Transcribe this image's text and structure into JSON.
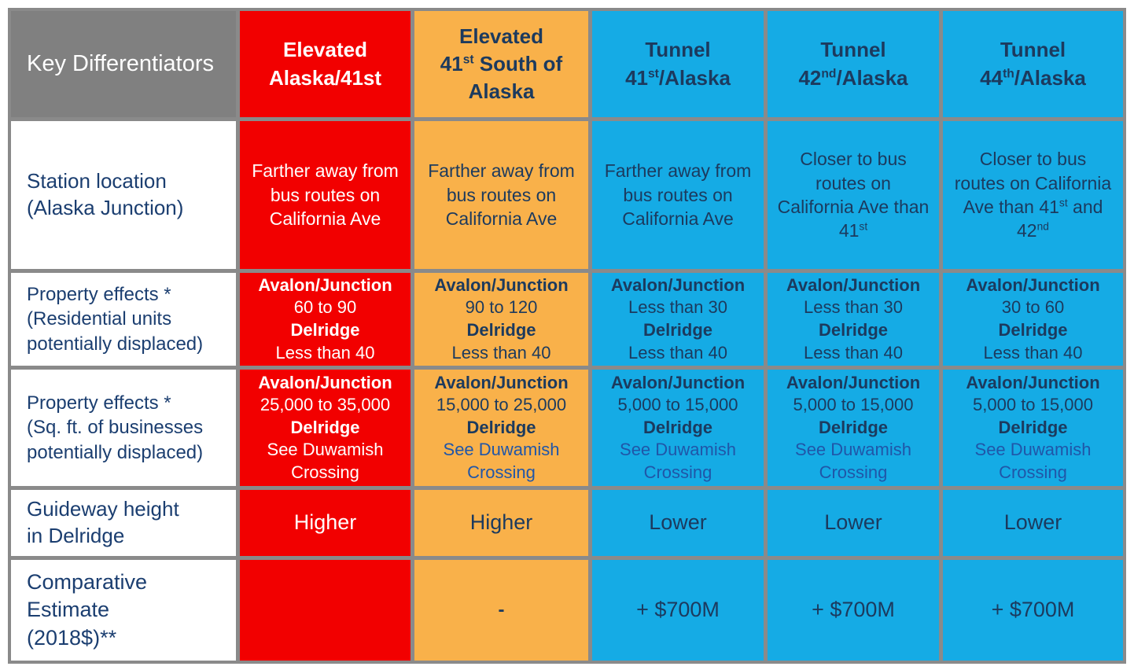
{
  "colors": {
    "header_gray": "#808080",
    "elevated_red": "#f20000",
    "elevated_orange": "#f9b14a",
    "tunnel_blue": "#15abe5",
    "grid_gray": "#8a8a8a",
    "label_navy": "#1b3e70",
    "cell_navy": "#1c3a5e",
    "duwamish_link_blue": "#2056a8",
    "white": "#ffffff"
  },
  "header": {
    "key": "Key Differentiators",
    "elevated_alaska": "Elevated Alaska/41st",
    "elevated_41st": {
      "line1": "Elevated",
      "num": "41",
      "sup": "st",
      "rest": " South of Alaska"
    },
    "tunnel_41": {
      "line1": "Tunnel",
      "num": "41",
      "sup": "st",
      "rest": "/Alaska"
    },
    "tunnel_42": {
      "line1": "Tunnel",
      "num": "42",
      "sup": "nd",
      "rest": "/Alaska"
    },
    "tunnel_44": {
      "line1": "Tunnel",
      "num": "44",
      "sup": "th",
      "rest": "/Alaska"
    }
  },
  "rows": {
    "station": {
      "label": "Station location (Alaska Junction)",
      "elevated_alaska": "Farther away from bus routes on California Ave",
      "elevated_41st": "Farther away from bus routes on California Ave",
      "tunnel_41": "Farther away from bus routes on California Ave",
      "tunnel_42": {
        "pre": "Closer to bus routes on California Ave than 41",
        "sup1": "st"
      },
      "tunnel_44": {
        "pre": "Closer to bus routes on California Ave than 41",
        "sup1": "st",
        "mid": " and 42",
        "sup2": "nd"
      }
    },
    "residential": {
      "label": "Property effects *",
      "label_sub": "(Residential units potentially displaced)",
      "elevated_alaska": {
        "loc1": "Avalon/Junction",
        "val1": "60 to 90",
        "loc2": "Delridge",
        "val2": "Less than 40"
      },
      "elevated_41st": {
        "loc1": "Avalon/Junction",
        "val1": "90 to 120",
        "loc2": "Delridge",
        "val2": "Less than 40"
      },
      "tunnel_41": {
        "loc1": "Avalon/Junction",
        "val1": "Less than 30",
        "loc2": "Delridge",
        "val2": "Less than 40"
      },
      "tunnel_42": {
        "loc1": "Avalon/Junction",
        "val1": "Less than 30",
        "loc2": "Delridge",
        "val2": "Less than 40"
      },
      "tunnel_44": {
        "loc1": "Avalon/Junction",
        "val1": "30 to 60",
        "loc2": "Delridge",
        "val2": "Less than 40"
      }
    },
    "business": {
      "label": "Property effects *",
      "label_sub": "(Sq. ft. of businesses potentially displaced)",
      "elevated_alaska": {
        "loc1": "Avalon/Junction",
        "val1": "25,000 to 35,000",
        "loc2": "Delridge",
        "val2": "See Duwamish Crossing"
      },
      "elevated_41st": {
        "loc1": "Avalon/Junction",
        "val1": "15,000 to 25,000",
        "loc2": "Delridge",
        "val2": "See Duwamish Crossing"
      },
      "tunnel_41": {
        "loc1": "Avalon/Junction",
        "val1": "5,000 to 15,000",
        "loc2": "Delridge",
        "val2": "See Duwamish Crossing"
      },
      "tunnel_42": {
        "loc1": "Avalon/Junction",
        "val1": "5,000 to 15,000",
        "loc2": "Delridge",
        "val2": "See Duwamish Crossing"
      },
      "tunnel_44": {
        "loc1": "Avalon/Junction",
        "val1": "5,000 to 15,000",
        "loc2": "Delridge",
        "val2": "See Duwamish Crossing"
      }
    },
    "guideway": {
      "label": "Guideway height in Delridge",
      "elevated_alaska": "Higher",
      "elevated_41st": "Higher",
      "tunnel_41": "Lower",
      "tunnel_42": "Lower",
      "tunnel_44": "Lower"
    },
    "estimate": {
      "label": "Comparative Estimate (2018$)**",
      "elevated_alaska": "",
      "elevated_41st": "-",
      "tunnel_41": "+ $700M",
      "tunnel_42": "+ $700M",
      "tunnel_44": "+ $700M"
    }
  }
}
